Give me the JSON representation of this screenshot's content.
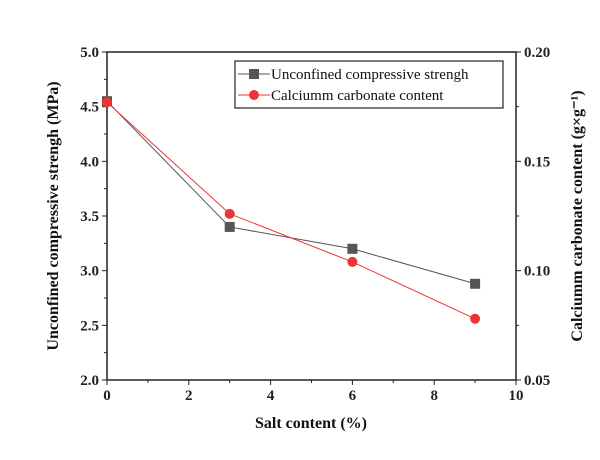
{
  "chart_data": {
    "type": "line",
    "xlabel": "Salt content (%)",
    "ylabel": "Unconfined compressive strengh (MPa)",
    "y2label": "Calciumm carbonate content (g×g⁻¹)",
    "xlim": [
      0,
      10
    ],
    "ylim": [
      2.0,
      5.0
    ],
    "y2lim": [
      0.05,
      0.2
    ],
    "xticks": [
      "0",
      "2",
      "4",
      "6",
      "8",
      "10"
    ],
    "yticks": [
      "2.0",
      "2.5",
      "3.0",
      "3.5",
      "4.0",
      "4.5",
      "5.0"
    ],
    "y2ticks": [
      "0.05",
      "0.10",
      "0.15",
      "0.20"
    ],
    "grid": false,
    "legend_position": "top-right",
    "series": [
      {
        "name": "Unconfined compressive strengh",
        "axis": "left",
        "color": "#555555",
        "marker": "square",
        "x": [
          0,
          3,
          6,
          9
        ],
        "y": [
          4.55,
          3.4,
          3.2,
          2.88
        ]
      },
      {
        "name": "Calciumm carbonate content",
        "axis": "right",
        "color": "#ee3333",
        "marker": "circle",
        "x": [
          0,
          3,
          6,
          9
        ],
        "y": [
          0.177,
          0.126,
          0.104,
          0.078
        ]
      }
    ]
  }
}
